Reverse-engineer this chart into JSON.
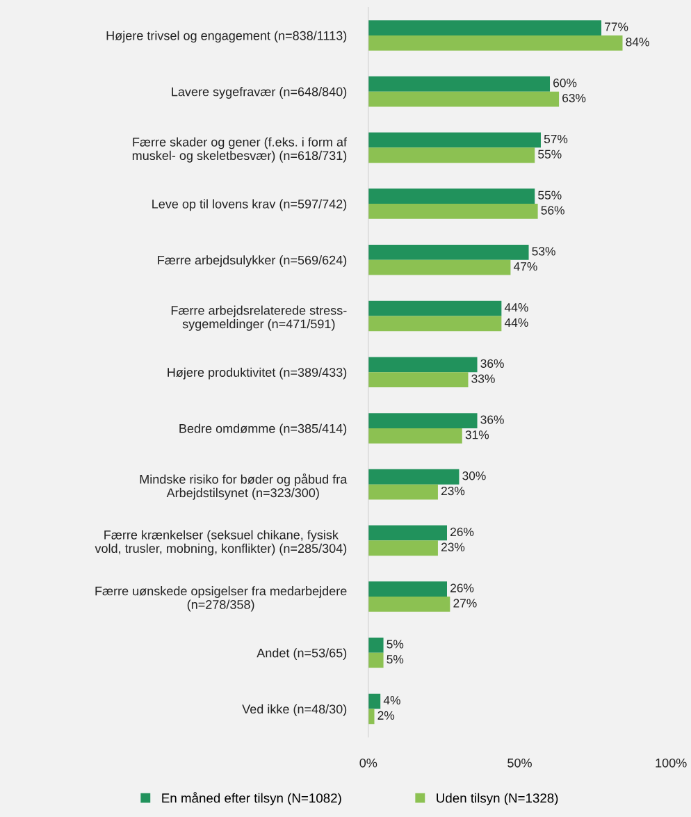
{
  "chart_data": {
    "type": "bar",
    "orientation": "horizontal",
    "categories": [
      "Højere trivsel og engagement (n=838/1113)",
      "Lavere sygefravær (n=648/840)",
      "Færre skader og gener (f.eks. i form af\nmuskel- og skeletbesvær) (n=618/731)",
      "Leve op til lovens krav (n=597/742)",
      "Færre arbejdsulykker (n=569/624)",
      "Færre arbejdsrelaterede stress-\nsygemeldinger (n=471/591)",
      "Højere produktivitet (n=389/433)",
      "Bedre omdømme (n=385/414)",
      "Mindske risiko for bøder og påbud fra\nArbejdstilsynet (n=323/300)",
      "Færre krænkelser (seksuel chikane, fysisk\nvold, trusler, mobning, konflikter) (n=285/304)",
      "Færre uønskede opsigelser fra medarbejdere\n(n=278/358)",
      "Andet (n=53/65)",
      "Ved ikke (n=48/30)"
    ],
    "series": [
      {
        "name": "En måned efter tilsyn (N=1082)",
        "color": "#21925c",
        "values": [
          77,
          60,
          57,
          55,
          53,
          44,
          36,
          36,
          30,
          26,
          26,
          5,
          4
        ],
        "value_labels": [
          "77%",
          "60%",
          "57%",
          "55%",
          "53%",
          "44%",
          "36%",
          "36%",
          "30%",
          "26%",
          "26%",
          "5%",
          "4%"
        ]
      },
      {
        "name": "Uden tilsyn (N=1328)",
        "color": "#8cc152",
        "values": [
          84,
          63,
          55,
          56,
          47,
          44,
          33,
          31,
          23,
          23,
          27,
          5,
          2
        ],
        "value_labels": [
          "84%",
          "63%",
          "55%",
          "56%",
          "47%",
          "44%",
          "33%",
          "31%",
          "23%",
          "23%",
          "27%",
          "5%",
          "2%"
        ]
      }
    ],
    "xlim": [
      0,
      100
    ],
    "xticks": [
      {
        "value": 0,
        "label": "0%"
      },
      {
        "value": 50,
        "label": "50%"
      },
      {
        "value": 100,
        "label": "100%"
      }
    ],
    "grid": false,
    "legend": "bottom"
  }
}
